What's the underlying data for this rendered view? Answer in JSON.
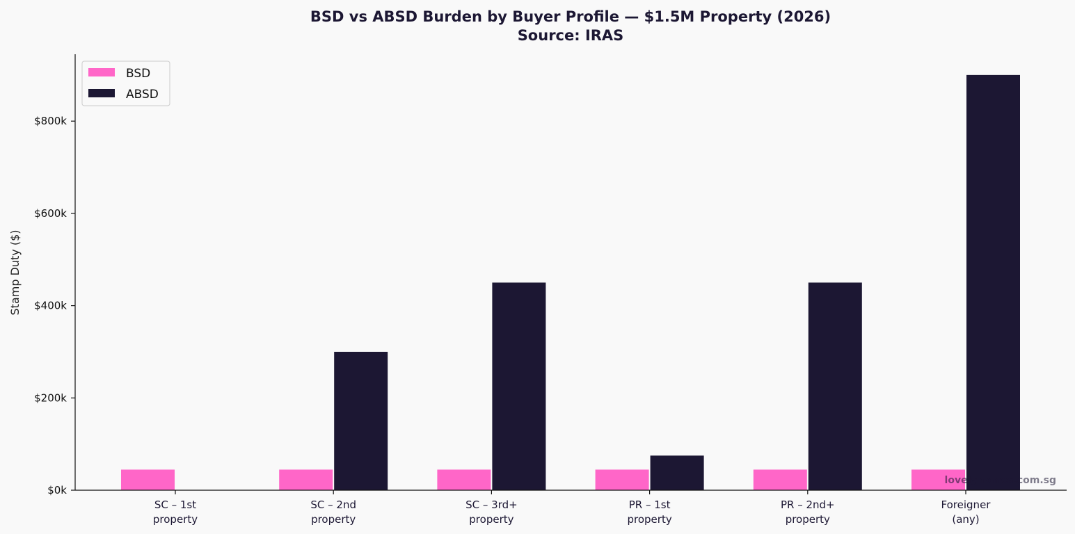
{
  "chart_data": {
    "type": "bar",
    "title": "BSD vs ABSD Burden by Buyer Profile — $1.5M Property (2026)",
    "subtitle": "Source: IRAS",
    "ylabel": "Stamp Duty ($)",
    "xlabel": "",
    "ylim": [
      0,
      945000
    ],
    "yticks": [
      0,
      200000,
      400000,
      600000,
      800000
    ],
    "ytick_labels": [
      "$0k",
      "$200k",
      "$400k",
      "$600k",
      "$800k"
    ],
    "categories": [
      [
        "SC – 1st",
        "property"
      ],
      [
        "SC – 2nd",
        "property"
      ],
      [
        "SC – 3rd+",
        "property"
      ],
      [
        "PR – 1st",
        "property"
      ],
      [
        "PR – 2nd+",
        "property"
      ],
      [
        "Foreigner",
        "(any)"
      ]
    ],
    "series": [
      {
        "name": "BSD",
        "color": "#ff66c8",
        "values": [
          44600,
          44600,
          44600,
          44600,
          44600,
          44600
        ]
      },
      {
        "name": "ABSD",
        "color": "#1c1733",
        "values": [
          0,
          300000,
          450000,
          75000,
          450000,
          900000
        ]
      }
    ],
    "legend_position": "top-left",
    "grid": false,
    "watermark": "lovelyhomes.com.sg"
  }
}
